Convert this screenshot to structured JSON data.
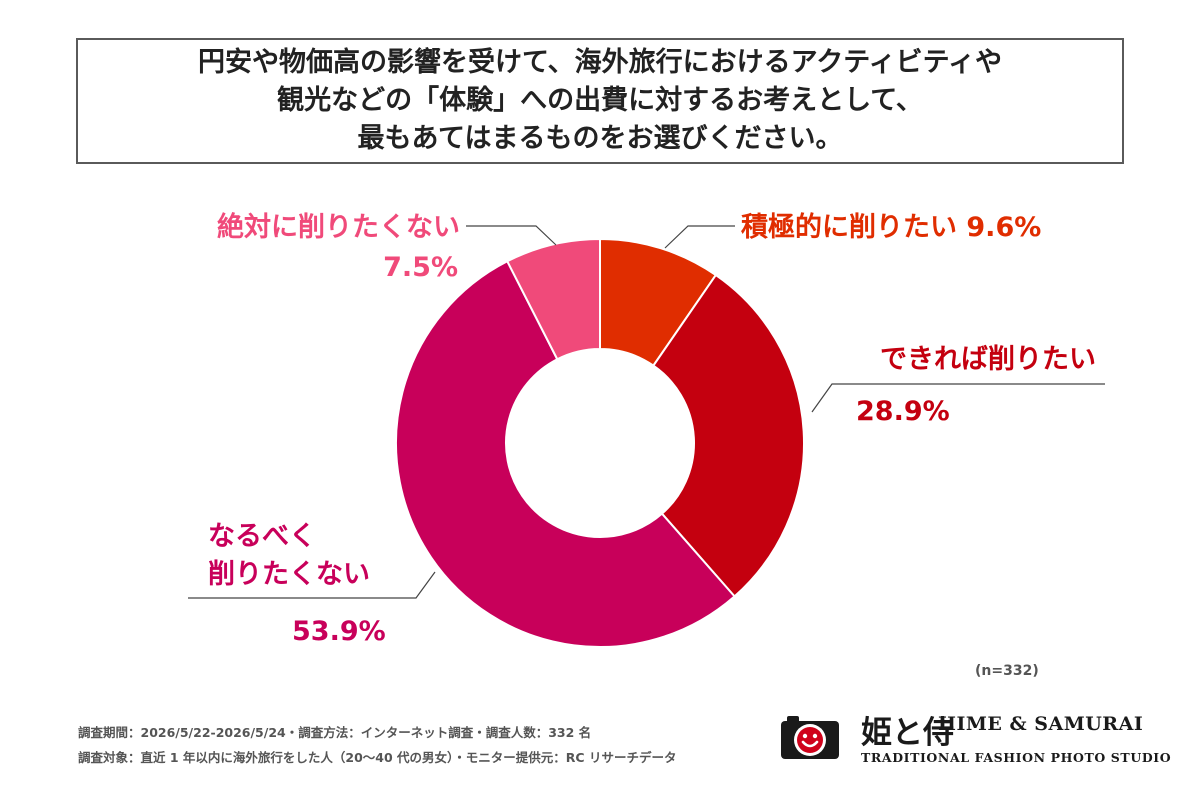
{
  "title": {
    "lines": [
      "円安や物価高の影響を受けて、海外旅行におけるアクティビティや",
      "観光などの「体験」への出費に対するお考えとして、",
      "最もあてはまるものをお選びください。"
    ]
  },
  "chart_data": {
    "type": "pie",
    "donut": true,
    "unit": "%",
    "categories": [
      "積極的に削りたい",
      "できれば削りたい",
      "なるべく削りたくない",
      "絶対に削りたくない"
    ],
    "values": [
      9.6,
      28.9,
      53.9,
      7.5
    ],
    "colors": [
      "#e02d00",
      "#c4000f",
      "#c8005a",
      "#f04a7a"
    ],
    "labels": [
      {
        "lines": [
          "積極的に削りたい"
        ],
        "value": "9.6%"
      },
      {
        "lines": [
          "できれば削りたい"
        ],
        "value": "28.9%"
      },
      {
        "lines": [
          "なるべく",
          "削りたくない"
        ],
        "value": "53.9%"
      },
      {
        "lines": [
          "絶対に削りたくない"
        ],
        "value": "7.5%"
      }
    ],
    "legend": "none"
  },
  "sample_size": "(n=332)",
  "footnotes": [
    "調査期間：2026/5/22-2026/5/24・調査方法：インターネット調査・調査人数：332 名",
    "調査対象：直近 1 年以内に海外旅行をした人（20〜40 代の男女）・モニター提供元：RC リサーチデータ"
  ],
  "logo": {
    "name_jp": "姫と侍",
    "name_en": "HIME & SAMURAI",
    "subtitle": "TRADITIONAL FASHION PHOTO STUDIO",
    "icon": "camera-smiley-icon",
    "icon_color": "#d0021b"
  }
}
